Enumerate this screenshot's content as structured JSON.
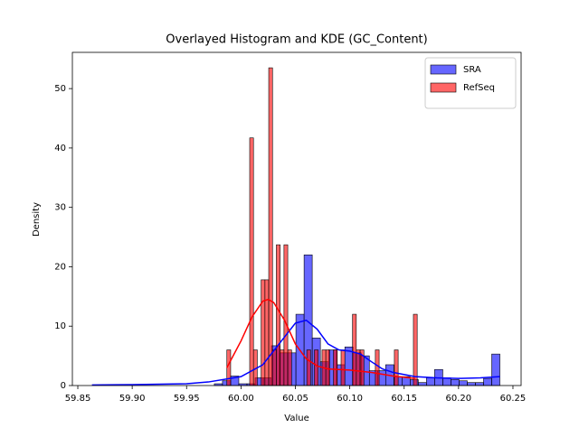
{
  "chart_data": {
    "type": "histogram",
    "title": "Overlayed Histogram and KDE (GC_Content)",
    "xlabel": "Value",
    "ylabel": "Density",
    "xlim": [
      59.845,
      60.2575
    ],
    "ylim": [
      0,
      56.1
    ],
    "xticks": [
      59.85,
      {
        "value": 59.9,
        "label": "59.90"
      },
      59.95,
      {
        "value": 60.0,
        "label": "60.00"
      },
      60.05,
      {
        "value": 60.1,
        "label": "60.10"
      },
      60.15,
      {
        "value": 60.2,
        "label": "60.20"
      },
      60.25
    ],
    "yticks": [
      0,
      10,
      20,
      30,
      40,
      50
    ],
    "legend": "upper right",
    "series": [
      {
        "name": "SRA",
        "color": "blue",
        "bins": [
          59.863,
          59.8705,
          59.878,
          59.8855,
          59.893,
          59.9005,
          59.908,
          59.9155,
          59.923,
          59.9305,
          59.938,
          59.9455,
          59.953,
          59.9605,
          59.968,
          59.9755,
          59.983,
          59.9905,
          59.998,
          60.0055,
          60.013,
          60.0205,
          60.028,
          60.0355,
          60.043,
          60.0505,
          60.058,
          60.0655,
          60.073,
          60.0805,
          60.088,
          60.0955,
          60.103,
          60.1105,
          60.118,
          60.1255,
          60.133,
          60.1405,
          60.148,
          60.1555,
          60.163,
          60.1705,
          60.178,
          60.1855,
          60.193,
          60.2005,
          60.208,
          60.2155,
          60.223,
          60.2305,
          60.238
        ],
        "values": [
          0,
          0,
          0,
          0,
          0,
          0,
          0,
          0,
          0,
          0,
          0,
          0,
          0,
          0,
          0,
          0.3,
          0.8,
          1.6,
          0.3,
          0.3,
          1.3,
          1.3,
          6.7,
          5.5,
          5.5,
          12,
          22,
          8,
          4,
          6,
          3.5,
          6.5,
          5.5,
          5,
          2.5,
          2.5,
          3.5,
          1.5,
          1.5,
          1,
          0.5,
          1.3,
          2.7,
          1.3,
          1,
          0.8,
          0.5,
          0.5,
          1.2,
          5.3
        ],
        "kde_x": [
          59.863,
          59.9,
          59.95,
          59.97,
          59.99,
          60.0,
          60.02,
          60.035,
          60.05,
          60.06,
          60.07,
          60.08,
          60.09,
          60.1,
          60.11,
          60.12,
          60.13,
          60.14,
          60.16,
          60.18,
          60.2,
          60.22,
          60.238
        ],
        "kde_y": [
          0.1,
          0.15,
          0.3,
          0.6,
          1.2,
          1.5,
          3.5,
          7,
          10.5,
          11,
          9.5,
          7,
          6,
          5.8,
          5.3,
          4,
          2.8,
          2.2,
          1.5,
          1.3,
          1.2,
          1.3,
          1.5
        ]
      },
      {
        "name": "RefSeq",
        "color": "red",
        "bins": [
          59.987,
          59.9905,
          59.994,
          59.9975,
          60.001,
          60.0045,
          60.008,
          60.0115,
          60.015,
          60.0185,
          60.022,
          60.0255,
          60.029,
          60.0325,
          60.036,
          60.0395,
          60.043,
          60.0465,
          60.05,
          60.0535,
          60.057,
          60.0605,
          60.064,
          60.0675,
          60.071,
          60.0745,
          60.078,
          60.0815,
          60.085,
          60.0885,
          60.092,
          60.0955,
          60.099,
          60.1025,
          60.106,
          60.1095,
          60.113,
          60.1165,
          60.12,
          60.1235,
          60.127,
          60.1305,
          60.134,
          60.1375,
          60.141,
          60.1445,
          60.148,
          60.1515,
          60.155,
          60.1585,
          60.162
        ],
        "values": [
          6,
          0,
          0,
          0,
          0,
          0,
          41.7,
          6,
          0,
          17.8,
          17.8,
          53.5,
          6,
          23.7,
          6,
          23.7,
          6,
          0,
          0,
          0,
          0,
          6,
          0,
          6,
          0,
          6,
          6,
          0,
          6,
          0,
          6,
          0,
          0,
          12,
          6,
          6,
          0,
          0,
          0,
          6,
          0,
          0,
          0,
          0,
          6,
          0,
          0,
          0,
          0,
          12
        ],
        "kde_x": [
          59.987,
          60.0,
          60.01,
          60.02,
          60.025,
          60.03,
          60.04,
          60.05,
          60.06,
          60.07,
          60.08,
          60.1,
          60.12,
          60.14,
          60.16
        ],
        "kde_y": [
          3,
          7.5,
          11.5,
          14.2,
          14.5,
          14,
          11,
          7,
          4.5,
          3.3,
          2.8,
          2.6,
          2.2,
          1.6,
          1.2
        ]
      }
    ]
  }
}
